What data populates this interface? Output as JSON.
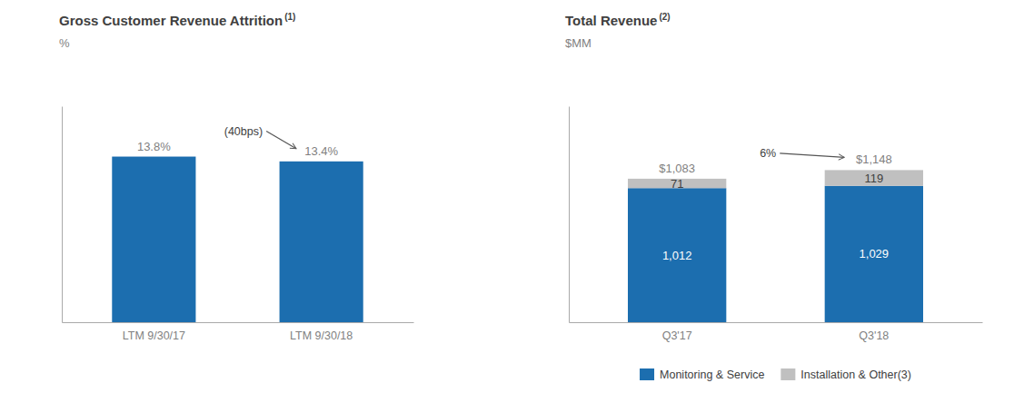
{
  "chart_data": [
    {
      "type": "bar",
      "title": "Gross Customer Revenue Attrition",
      "title_superscript": "(1)",
      "subtitle": "%",
      "categories": [
        "LTM 9/30/17",
        "LTM 9/30/18"
      ],
      "values": [
        13.8,
        13.4
      ],
      "value_labels": [
        "13.8%",
        "13.4%"
      ],
      "color": "#1C6EAF",
      "data_labels": true,
      "ylim": [
        0,
        18
      ],
      "yticks": [],
      "tick_labels": "x",
      "grid": false,
      "annotations": [
        {
          "text": "(40bps)"
        }
      ]
    },
    {
      "type": "bar",
      "stacked": true,
      "title": "Total Revenue",
      "title_superscript": "(2)",
      "subtitle": "$MM",
      "categories": [
        "Q3'17",
        "Q3'18"
      ],
      "series": [
        {
          "name": "Monitoring & Service",
          "color": "#1C6EAF",
          "values": [
            1012,
            1029
          ],
          "value_labels": [
            "1,012",
            "1,029"
          ]
        },
        {
          "name": "Installation & Other(3)",
          "color": "#C0C0C0",
          "values": [
            71,
            119
          ]
        }
      ],
      "totals": [
        1083,
        1148
      ],
      "total_labels": [
        "$1,083",
        "$1,148"
      ],
      "data_labels": true,
      "ylim": [
        0,
        1630.16
      ],
      "yticks": [],
      "tick_labels": "x",
      "grid": false,
      "legend": "bottom",
      "annotations": [
        {
          "text": "6%"
        }
      ]
    }
  ]
}
